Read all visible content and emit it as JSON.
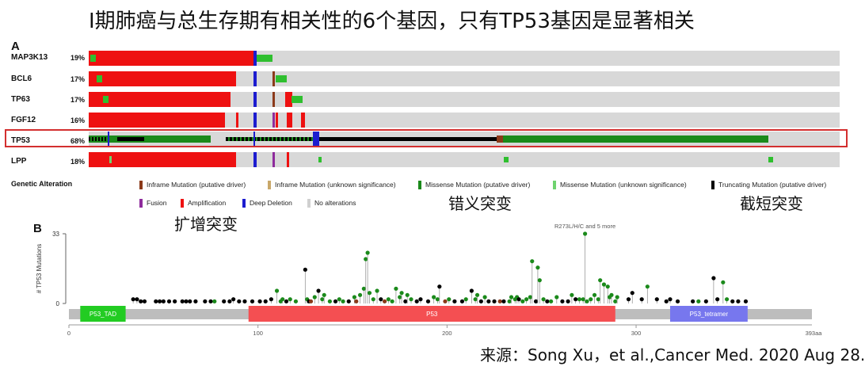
{
  "title": "I期肺癌与总生存期有相关性的6个基因，只有TP53基因是显著相关",
  "panel_a_label": "A",
  "panel_b_label": "B",
  "legend_title": "Genetic Alteration",
  "legend": [
    {
      "label": "Inframe Mutation (putative driver)",
      "color": "#8b3a1a"
    },
    {
      "label": "Inframe Mutation (unknown significance)",
      "color": "#c9a86a"
    },
    {
      "label": "Missense Mutation (putative driver)",
      "color": "#1b8a1b"
    },
    {
      "label": "Missense Mutation (unknown significance)",
      "color": "#6fd36f"
    },
    {
      "label": "Truncating Mutation (putative driver)",
      "color": "#000000"
    },
    {
      "label": "Fusion",
      "color": "#8e2b9c"
    },
    {
      "label": "Amplification",
      "color": "#ee1111"
    },
    {
      "label": "Deep Deletion",
      "color": "#1c1ccf"
    },
    {
      "label": "No alterations",
      "color": "#d0d0d0"
    }
  ],
  "callouts": {
    "amplification": "扩增突变",
    "missense": "错义突变",
    "truncating": "截短突变"
  },
  "source": "来源：Song Xu，et al.,Cancer Med. 2020 Aug 28.",
  "chart_data": [
    {
      "type": "oncoprint",
      "genes": [
        {
          "name": "MAP3K13",
          "percent": "19%"
        },
        {
          "name": "BCL6",
          "percent": "17%"
        },
        {
          "name": "TP63",
          "percent": "17%"
        },
        {
          "name": "FGF12",
          "percent": "16%"
        },
        {
          "name": "TP53",
          "percent": "68%",
          "highlighted": true
        },
        {
          "name": "LPP",
          "percent": "18%"
        }
      ]
    },
    {
      "type": "lollipop",
      "ylabel": "# TP53 Mutations",
      "ylim": [
        0,
        33
      ],
      "y_ticks": [
        "0",
        "33"
      ],
      "x_ticks": [
        0,
        100,
        200,
        300
      ],
      "x_end_label": "393aa",
      "protein_length": 393,
      "top_annotation": "R273L/H/C and 5 more",
      "domains": [
        {
          "name": "P53_TAD",
          "start": 6,
          "end": 30,
          "color": "#22cc22"
        },
        {
          "name": "P53",
          "start": 95,
          "end": 289,
          "color": "#f44f52"
        },
        {
          "name": "P53_tetramer",
          "start": 318,
          "end": 359,
          "color": "#7777ee"
        }
      ],
      "mutations": [
        {
          "pos": 34,
          "count": 2,
          "type": "truncating"
        },
        {
          "pos": 36,
          "count": 2,
          "type": "truncating"
        },
        {
          "pos": 38,
          "count": 1,
          "type": "truncating"
        },
        {
          "pos": 40,
          "count": 1,
          "type": "truncating"
        },
        {
          "pos": 46,
          "count": 1,
          "type": "truncating"
        },
        {
          "pos": 48,
          "count": 1,
          "type": "truncating"
        },
        {
          "pos": 50,
          "count": 1,
          "type": "truncating"
        },
        {
          "pos": 53,
          "count": 1,
          "type": "truncating"
        },
        {
          "pos": 56,
          "count": 1,
          "type": "truncating"
        },
        {
          "pos": 60,
          "count": 1,
          "type": "truncating"
        },
        {
          "pos": 62,
          "count": 1,
          "type": "truncating"
        },
        {
          "pos": 64,
          "count": 1,
          "type": "truncating"
        },
        {
          "pos": 67,
          "count": 1,
          "type": "truncating"
        },
        {
          "pos": 72,
          "count": 1,
          "type": "truncating"
        },
        {
          "pos": 75,
          "count": 1,
          "type": "truncating"
        },
        {
          "pos": 77,
          "count": 1,
          "type": "missense"
        },
        {
          "pos": 82,
          "count": 1,
          "type": "truncating"
        },
        {
          "pos": 85,
          "count": 1,
          "type": "truncating"
        },
        {
          "pos": 87,
          "count": 2,
          "type": "truncating"
        },
        {
          "pos": 90,
          "count": 1,
          "type": "truncating"
        },
        {
          "pos": 93,
          "count": 1,
          "type": "truncating"
        },
        {
          "pos": 97,
          "count": 1,
          "type": "truncating"
        },
        {
          "pos": 101,
          "count": 1,
          "type": "truncating"
        },
        {
          "pos": 104,
          "count": 1,
          "type": "truncating"
        },
        {
          "pos": 107,
          "count": 2,
          "type": "truncating"
        },
        {
          "pos": 110,
          "count": 6,
          "type": "missense"
        },
        {
          "pos": 112,
          "count": 1,
          "type": "missense"
        },
        {
          "pos": 113,
          "count": 2,
          "type": "missense"
        },
        {
          "pos": 115,
          "count": 1,
          "type": "truncating"
        },
        {
          "pos": 117,
          "count": 2,
          "type": "missense"
        },
        {
          "pos": 120,
          "count": 1,
          "type": "missense"
        },
        {
          "pos": 125,
          "count": 16,
          "type": "truncating"
        },
        {
          "pos": 126,
          "count": 2,
          "type": "missense"
        },
        {
          "pos": 127,
          "count": 1,
          "type": "truncating"
        },
        {
          "pos": 128,
          "count": 1,
          "type": "inframe"
        },
        {
          "pos": 130,
          "count": 3,
          "type": "missense"
        },
        {
          "pos": 132,
          "count": 6,
          "type": "truncating"
        },
        {
          "pos": 134,
          "count": 2,
          "type": "missense"
        },
        {
          "pos": 135,
          "count": 4,
          "type": "missense"
        },
        {
          "pos": 138,
          "count": 1,
          "type": "missense"
        },
        {
          "pos": 141,
          "count": 1,
          "type": "truncating"
        },
        {
          "pos": 143,
          "count": 2,
          "type": "missense"
        },
        {
          "pos": 145,
          "count": 1,
          "type": "missense"
        },
        {
          "pos": 148,
          "count": 1,
          "type": "truncating"
        },
        {
          "pos": 151,
          "count": 3,
          "type": "missense"
        },
        {
          "pos": 152,
          "count": 1,
          "type": "inframe"
        },
        {
          "pos": 154,
          "count": 4,
          "type": "missense"
        },
        {
          "pos": 156,
          "count": 7,
          "type": "missense"
        },
        {
          "pos": 157,
          "count": 21,
          "type": "missense"
        },
        {
          "pos": 158,
          "count": 24,
          "type": "missense"
        },
        {
          "pos": 159,
          "count": 5,
          "type": "missense"
        },
        {
          "pos": 161,
          "count": 2,
          "type": "missense"
        },
        {
          "pos": 163,
          "count": 6,
          "type": "missense"
        },
        {
          "pos": 165,
          "count": 2,
          "type": "truncating"
        },
        {
          "pos": 167,
          "count": 1,
          "type": "inframe"
        },
        {
          "pos": 169,
          "count": 2,
          "type": "missense"
        },
        {
          "pos": 171,
          "count": 1,
          "type": "missense"
        },
        {
          "pos": 173,
          "count": 7,
          "type": "missense"
        },
        {
          "pos": 175,
          "count": 3,
          "type": "missense"
        },
        {
          "pos": 176,
          "count": 5,
          "type": "missense"
        },
        {
          "pos": 178,
          "count": 1,
          "type": "truncating"
        },
        {
          "pos": 179,
          "count": 4,
          "type": "missense"
        },
        {
          "pos": 181,
          "count": 2,
          "type": "missense"
        },
        {
          "pos": 184,
          "count": 1,
          "type": "truncating"
        },
        {
          "pos": 186,
          "count": 2,
          "type": "truncating"
        },
        {
          "pos": 190,
          "count": 1,
          "type": "truncating"
        },
        {
          "pos": 193,
          "count": 3,
          "type": "missense"
        },
        {
          "pos": 195,
          "count": 2,
          "type": "missense"
        },
        {
          "pos": 196,
          "count": 8,
          "type": "truncating"
        },
        {
          "pos": 199,
          "count": 1,
          "type": "inframe"
        },
        {
          "pos": 201,
          "count": 2,
          "type": "missense"
        },
        {
          "pos": 204,
          "count": 1,
          "type": "truncating"
        },
        {
          "pos": 208,
          "count": 1,
          "type": "truncating"
        },
        {
          "pos": 210,
          "count": 2,
          "type": "missense"
        },
        {
          "pos": 213,
          "count": 6,
          "type": "truncating"
        },
        {
          "pos": 215,
          "count": 2,
          "type": "missense"
        },
        {
          "pos": 216,
          "count": 4,
          "type": "missense"
        },
        {
          "pos": 218,
          "count": 1,
          "type": "truncating"
        },
        {
          "pos": 220,
          "count": 3,
          "type": "missense"
        },
        {
          "pos": 222,
          "count": 1,
          "type": "truncating"
        },
        {
          "pos": 225,
          "count": 1,
          "type": "truncating"
        },
        {
          "pos": 228,
          "count": 1,
          "type": "inframe"
        },
        {
          "pos": 230,
          "count": 1,
          "type": "truncating"
        },
        {
          "pos": 233,
          "count": 1,
          "type": "missense"
        },
        {
          "pos": 234,
          "count": 3,
          "type": "missense"
        },
        {
          "pos": 236,
          "count": 2,
          "type": "missense"
        },
        {
          "pos": 237,
          "count": 3,
          "type": "missense"
        },
        {
          "pos": 238,
          "count": 2,
          "type": "truncating"
        },
        {
          "pos": 240,
          "count": 1,
          "type": "missense"
        },
        {
          "pos": 242,
          "count": 2,
          "type": "missense"
        },
        {
          "pos": 244,
          "count": 3,
          "type": "missense"
        },
        {
          "pos": 245,
          "count": 20,
          "type": "missense"
        },
        {
          "pos": 247,
          "count": 1,
          "type": "truncating"
        },
        {
          "pos": 248,
          "count": 17,
          "type": "missense"
        },
        {
          "pos": 249,
          "count": 11,
          "type": "missense"
        },
        {
          "pos": 251,
          "count": 2,
          "type": "missense"
        },
        {
          "pos": 253,
          "count": 1,
          "type": "truncating"
        },
        {
          "pos": 255,
          "count": 1,
          "type": "missense"
        },
        {
          "pos": 258,
          "count": 3,
          "type": "missense"
        },
        {
          "pos": 261,
          "count": 1,
          "type": "truncating"
        },
        {
          "pos": 264,
          "count": 1,
          "type": "truncating"
        },
        {
          "pos": 266,
          "count": 4,
          "type": "missense"
        },
        {
          "pos": 268,
          "count": 2,
          "type": "truncating"
        },
        {
          "pos": 270,
          "count": 2,
          "type": "missense"
        },
        {
          "pos": 272,
          "count": 2,
          "type": "missense"
        },
        {
          "pos": 273,
          "count": 33,
          "type": "missense"
        },
        {
          "pos": 274,
          "count": 1,
          "type": "missense"
        },
        {
          "pos": 276,
          "count": 2,
          "type": "missense"
        },
        {
          "pos": 278,
          "count": 4,
          "type": "missense"
        },
        {
          "pos": 280,
          "count": 2,
          "type": "missense"
        },
        {
          "pos": 281,
          "count": 11,
          "type": "missense"
        },
        {
          "pos": 283,
          "count": 9,
          "type": "missense"
        },
        {
          "pos": 285,
          "count": 8,
          "type": "missense"
        },
        {
          "pos": 286,
          "count": 3,
          "type": "missense"
        },
        {
          "pos": 287,
          "count": 4,
          "type": "missense"
        },
        {
          "pos": 289,
          "count": 1,
          "type": "missense"
        },
        {
          "pos": 290,
          "count": 3,
          "type": "missense"
        },
        {
          "pos": 296,
          "count": 2,
          "type": "truncating"
        },
        {
          "pos": 298,
          "count": 5,
          "type": "truncating"
        },
        {
          "pos": 303,
          "count": 2,
          "type": "truncating"
        },
        {
          "pos": 306,
          "count": 8,
          "type": "missense"
        },
        {
          "pos": 311,
          "count": 2,
          "type": "truncating"
        },
        {
          "pos": 316,
          "count": 1,
          "type": "truncating"
        },
        {
          "pos": 318,
          "count": 2,
          "type": "truncating"
        },
        {
          "pos": 322,
          "count": 1,
          "type": "truncating"
        },
        {
          "pos": 330,
          "count": 1,
          "type": "truncating"
        },
        {
          "pos": 333,
          "count": 1,
          "type": "missense"
        },
        {
          "pos": 337,
          "count": 1,
          "type": "truncating"
        },
        {
          "pos": 341,
          "count": 12,
          "type": "truncating"
        },
        {
          "pos": 343,
          "count": 2,
          "type": "truncating"
        },
        {
          "pos": 346,
          "count": 10,
          "type": "missense"
        },
        {
          "pos": 348,
          "count": 2,
          "type": "missense"
        },
        {
          "pos": 351,
          "count": 1,
          "type": "truncating"
        },
        {
          "pos": 354,
          "count": 1,
          "type": "truncating"
        },
        {
          "pos": 358,
          "count": 1,
          "type": "truncating"
        }
      ]
    }
  ]
}
